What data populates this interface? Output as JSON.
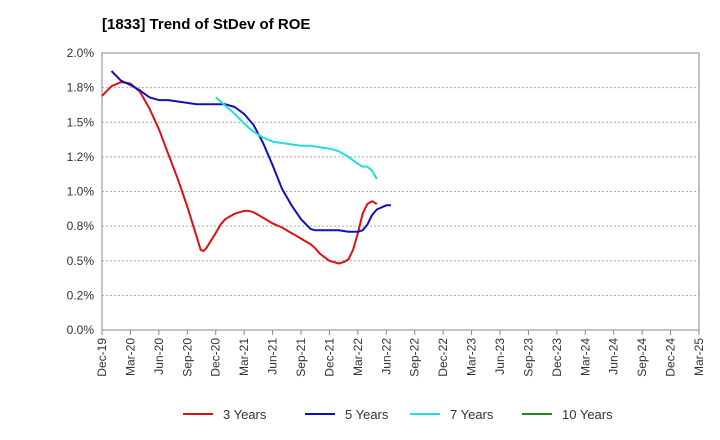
{
  "chart_data": {
    "type": "line",
    "title": "[1833]  Trend of StDev of ROE",
    "xlabel": "",
    "ylabel": "",
    "ylim": [
      0,
      2.0
    ],
    "y_ticks": [
      0,
      0.25,
      0.5,
      0.75,
      1.0,
      1.25,
      1.5,
      1.75,
      2.0
    ],
    "y_tick_labels": [
      "0.0%",
      "0.2%",
      "0.5%",
      "0.8%",
      "1.0%",
      "1.2%",
      "1.5%",
      "1.8%",
      "2.0%"
    ],
    "x_tick_labels": [
      "Dec-19",
      "Mar-20",
      "Jun-20",
      "Sep-20",
      "Dec-20",
      "Mar-21",
      "Jun-21",
      "Sep-21",
      "Dec-21",
      "Mar-22",
      "Jun-22",
      "Sep-22",
      "Dec-22",
      "Mar-23",
      "Jun-23",
      "Sep-23",
      "Dec-23",
      "Mar-24",
      "Jun-24",
      "Sep-24",
      "Dec-24",
      "Mar-25"
    ],
    "grid": true,
    "legend_position": "bottom",
    "series": [
      {
        "name": "3 Years",
        "color": "#dd1111",
        "points": [
          [
            0,
            1.69
          ],
          [
            1,
            1.76
          ],
          [
            2,
            1.79
          ],
          [
            3,
            1.78
          ],
          [
            4,
            1.72
          ],
          [
            5,
            1.6
          ],
          [
            6,
            1.45
          ],
          [
            7,
            1.27
          ],
          [
            8,
            1.09
          ],
          [
            9,
            0.89
          ],
          [
            10,
            0.67
          ],
          [
            10.4,
            0.58
          ],
          [
            10.7,
            0.57
          ],
          [
            11,
            0.59
          ],
          [
            12,
            0.7
          ],
          [
            12.5,
            0.76
          ],
          [
            13,
            0.8
          ],
          [
            13.5,
            0.82
          ],
          [
            14,
            0.84
          ],
          [
            15,
            0.86
          ],
          [
            15.5,
            0.86
          ],
          [
            16,
            0.85
          ],
          [
            17,
            0.81
          ],
          [
            18,
            0.77
          ],
          [
            19,
            0.74
          ],
          [
            20,
            0.7
          ],
          [
            20.5,
            0.68
          ],
          [
            21,
            0.66
          ],
          [
            22,
            0.62
          ],
          [
            22.5,
            0.59
          ],
          [
            23,
            0.55
          ],
          [
            24,
            0.5
          ],
          [
            25,
            0.48
          ],
          [
            25.5,
            0.49
          ],
          [
            26,
            0.51
          ],
          [
            26.5,
            0.58
          ],
          [
            27,
            0.7
          ],
          [
            27.5,
            0.84
          ],
          [
            28,
            0.91
          ],
          [
            28.5,
            0.93
          ],
          [
            29,
            0.91
          ]
        ]
      },
      {
        "name": "5 Years",
        "color": "#1111bb",
        "points": [
          [
            1,
            1.87
          ],
          [
            2,
            1.8
          ],
          [
            3,
            1.77
          ],
          [
            4,
            1.73
          ],
          [
            5,
            1.68
          ],
          [
            6,
            1.66
          ],
          [
            7,
            1.66
          ],
          [
            8,
            1.65
          ],
          [
            9,
            1.64
          ],
          [
            10,
            1.63
          ],
          [
            11,
            1.63
          ],
          [
            12,
            1.63
          ],
          [
            13,
            1.63
          ],
          [
            14,
            1.61
          ],
          [
            15,
            1.56
          ],
          [
            16,
            1.48
          ],
          [
            17,
            1.35
          ],
          [
            18,
            1.19
          ],
          [
            19,
            1.02
          ],
          [
            20,
            0.9
          ],
          [
            21,
            0.8
          ],
          [
            22,
            0.73
          ],
          [
            22.5,
            0.72
          ],
          [
            23,
            0.72
          ],
          [
            24,
            0.72
          ],
          [
            25,
            0.72
          ],
          [
            26,
            0.71
          ],
          [
            27,
            0.71
          ],
          [
            27.5,
            0.72
          ],
          [
            28,
            0.76
          ],
          [
            28.5,
            0.83
          ],
          [
            29,
            0.87
          ],
          [
            30,
            0.9
          ],
          [
            30.5,
            0.9
          ]
        ]
      },
      {
        "name": "7 Years",
        "color": "#22dddd",
        "points": [
          [
            12,
            1.68
          ],
          [
            13,
            1.62
          ],
          [
            14,
            1.56
          ],
          [
            15,
            1.49
          ],
          [
            16,
            1.43
          ],
          [
            17,
            1.39
          ],
          [
            18,
            1.36
          ],
          [
            19,
            1.35
          ],
          [
            20,
            1.34
          ],
          [
            21,
            1.33
          ],
          [
            22,
            1.33
          ],
          [
            23,
            1.32
          ],
          [
            24,
            1.31
          ],
          [
            25,
            1.29
          ],
          [
            26,
            1.25
          ],
          [
            27,
            1.2
          ],
          [
            27.5,
            1.18
          ],
          [
            28,
            1.18
          ],
          [
            28.5,
            1.15
          ],
          [
            29,
            1.09
          ]
        ]
      },
      {
        "name": "10 Years",
        "color": "#228822",
        "points": []
      }
    ]
  }
}
